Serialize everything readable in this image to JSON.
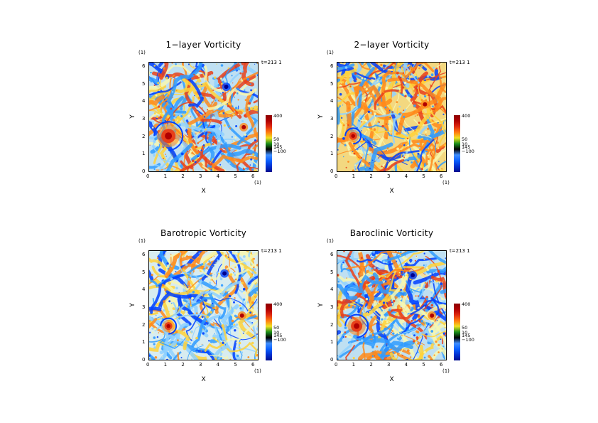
{
  "chart_data": [
    {
      "type": "heatmap",
      "title": "1−layer Vorticity",
      "xlabel": "X",
      "ylabel": "Y",
      "xunit": "(1)",
      "yunit": "(1)",
      "time_label": "t=213 1",
      "xlim": [
        0,
        6.283
      ],
      "ylim": [
        0,
        6.283
      ],
      "xticks": [
        "0",
        "1",
        "2",
        "3",
        "4",
        "5",
        "6"
      ],
      "yticks": [
        "0",
        "1",
        "2",
        "3",
        "4",
        "5",
        "6"
      ],
      "colorbar_labels": [
        "400",
        "50",
        "10",
        "145",
        "−100"
      ],
      "features": {
        "dominant_vortex": [
          1.1,
          2.1
        ],
        "small_vortices": [
          [
            4.4,
            4.9
          ],
          [
            5.4,
            2.6
          ]
        ],
        "tone": "mixed"
      }
    },
    {
      "type": "heatmap",
      "title": "2−layer Vorticity",
      "xlabel": "X",
      "ylabel": "Y",
      "xunit": "(1)",
      "yunit": "(1)",
      "time_label": "t=213 1",
      "xlim": [
        0,
        6.283
      ],
      "ylim": [
        0,
        6.283
      ],
      "xticks": [
        "0",
        "1",
        "2",
        "3",
        "4",
        "5",
        "6"
      ],
      "yticks": [
        "0",
        "1",
        "2",
        "3",
        "4",
        "5",
        "6"
      ],
      "colorbar_labels": [
        "400",
        "50",
        "10",
        "145",
        "−100"
      ],
      "features": {
        "dominant_vortex": [
          0.9,
          2.1
        ],
        "small_vortices": [
          [
            5.0,
            3.9
          ]
        ],
        "tone": "warm"
      }
    },
    {
      "type": "heatmap",
      "title": "Barotropic Vorticity",
      "xlabel": "X",
      "ylabel": "Y",
      "xunit": "(1)",
      "yunit": "(1)",
      "time_label": "t=213 1",
      "xlim": [
        0,
        6.283
      ],
      "ylim": [
        0,
        6.283
      ],
      "xticks": [
        "0",
        "1",
        "2",
        "3",
        "4",
        "5",
        "6"
      ],
      "yticks": [
        "0",
        "1",
        "2",
        "3",
        "4",
        "5",
        "6"
      ],
      "colorbar_labels": [
        "400",
        "50",
        "10",
        "145",
        "−100"
      ],
      "features": {
        "dominant_vortex": [
          1.1,
          2.0
        ],
        "small_vortices": [
          [
            4.3,
            5.0
          ],
          [
            5.3,
            2.6
          ]
        ],
        "tone": "pale"
      }
    },
    {
      "type": "heatmap",
      "title": "Baroclinic Vorticity",
      "xlabel": "X",
      "ylabel": "Y",
      "xunit": "(1)",
      "yunit": "(1)",
      "time_label": "t=213 1",
      "xlim": [
        0,
        6.283
      ],
      "ylim": [
        0,
        6.283
      ],
      "xticks": [
        "0",
        "1",
        "2",
        "3",
        "4",
        "5",
        "6"
      ],
      "yticks": [
        "0",
        "1",
        "2",
        "3",
        "4",
        "5",
        "6"
      ],
      "colorbar_labels": [
        "400",
        "50",
        "10",
        "145",
        "−100"
      ],
      "features": {
        "dominant_vortex": [
          1.1,
          2.0
        ],
        "small_vortices": [
          [
            4.3,
            4.9
          ],
          [
            5.4,
            2.6
          ]
        ],
        "tone": "mixed"
      }
    }
  ],
  "colormap": [
    "#00008f",
    "#0040ff",
    "#2f9bff",
    "#8fd1ff",
    "#f7f7b0",
    "#ffd23a",
    "#ff8a1a",
    "#e8401a",
    "#b00000"
  ],
  "colorbar_colors": [
    "#000f8f",
    "#0030d0",
    "#0a60ff",
    "#3f8fff",
    "#000000",
    "#1a8f1a",
    "#f0e020",
    "#ff7a10",
    "#e02a10",
    "#b00000",
    "#8c0000"
  ]
}
